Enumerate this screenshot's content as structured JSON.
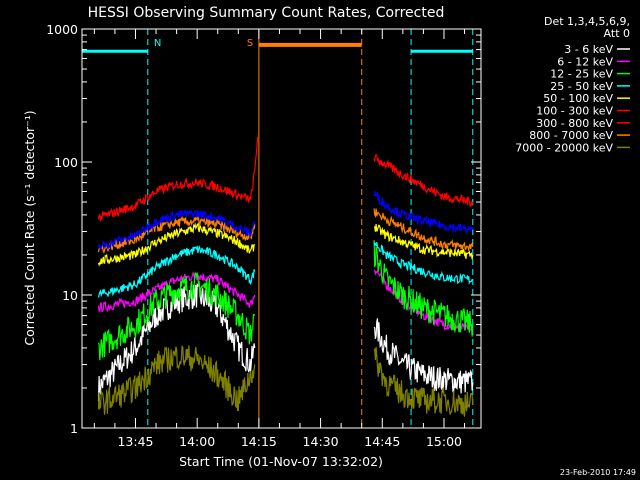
{
  "chart_data": {
    "type": "line",
    "title": "HESSI Observing Summary Count Rates, Corrected",
    "xlabel": "Start Time (01-Nov-07 13:32:02)",
    "ylabel": "Corrected Count Rate (s⁻¹ detector⁻¹)",
    "ylog": true,
    "ylim": [
      1,
      1000
    ],
    "xlim": [
      "13:32",
      "15:09"
    ],
    "x_ticks": [
      "13:45",
      "14:00",
      "14:15",
      "14:30",
      "14:45",
      "15:00"
    ],
    "y_ticks": [
      "1",
      "10",
      "100",
      "1000"
    ],
    "legend_header": [
      "Det 1,3,4,5,6,9,",
      "Att 0"
    ],
    "legend_position": "top-right",
    "date_stamp": "23-Feb-2010 17:49",
    "flags": [
      {
        "label": "N",
        "name": "night",
        "color": "#00ffff",
        "spans": [
          [
            "13:32",
            "13:48"
          ],
          [
            "14:52",
            "15:07"
          ]
        ],
        "level": 680
      },
      {
        "label": "S",
        "name": "saa",
        "color": "#ff8000",
        "spans": [
          [
            "14:15",
            "14:40"
          ]
        ],
        "level": 760
      }
    ],
    "series": [
      {
        "name": "3 - 6 keV",
        "color": "#ffffff",
        "points": [
          [
            "13:36",
            2
          ],
          [
            "13:45",
            4
          ],
          [
            "13:50",
            7
          ],
          [
            "13:55",
            9
          ],
          [
            "14:00",
            10
          ],
          [
            "14:05",
            8
          ],
          [
            "14:10",
            4
          ],
          [
            "14:13",
            3
          ],
          [
            "14:14",
            4
          ],
          [
            "14:43",
            6
          ],
          [
            "14:46",
            4
          ],
          [
            "14:50",
            3
          ],
          [
            "14:55",
            2.5
          ],
          [
            "15:00",
            2.3
          ],
          [
            "15:07",
            2.2
          ]
        ]
      },
      {
        "name": "6 - 12 keV",
        "color": "#ff00ff",
        "points": [
          [
            "13:36",
            8
          ],
          [
            "13:45",
            9
          ],
          [
            "13:50",
            11
          ],
          [
            "13:55",
            13
          ],
          [
            "14:00",
            14
          ],
          [
            "14:05",
            13
          ],
          [
            "14:10",
            10
          ],
          [
            "14:13",
            8.5
          ],
          [
            "14:14",
            10
          ],
          [
            "14:43",
            16
          ],
          [
            "14:46",
            12
          ],
          [
            "14:50",
            9
          ],
          [
            "14:55",
            7
          ],
          [
            "15:00",
            6
          ],
          [
            "15:07",
            5.5
          ]
        ]
      },
      {
        "name": "12 - 25 keV",
        "color": "#00ff00",
        "points": [
          [
            "13:36",
            4
          ],
          [
            "13:45",
            6
          ],
          [
            "13:50",
            9
          ],
          [
            "13:55",
            11
          ],
          [
            "14:00",
            12
          ],
          [
            "14:05",
            10
          ],
          [
            "14:10",
            7
          ],
          [
            "14:13",
            5
          ],
          [
            "14:14",
            7
          ],
          [
            "14:43",
            21
          ],
          [
            "14:46",
            13
          ],
          [
            "14:50",
            10
          ],
          [
            "14:55",
            8
          ],
          [
            "15:00",
            7
          ],
          [
            "15:07",
            6
          ]
        ]
      },
      {
        "name": "25 - 50 keV",
        "color": "#00ffff",
        "points": [
          [
            "13:36",
            10
          ],
          [
            "13:45",
            12
          ],
          [
            "13:50",
            16
          ],
          [
            "13:55",
            20
          ],
          [
            "14:00",
            22
          ],
          [
            "14:05",
            20
          ],
          [
            "14:10",
            16
          ],
          [
            "14:13",
            13
          ],
          [
            "14:14",
            15
          ],
          [
            "14:43",
            25
          ],
          [
            "14:46",
            20
          ],
          [
            "14:50",
            17
          ],
          [
            "14:55",
            15
          ],
          [
            "15:00",
            13.5
          ],
          [
            "15:07",
            13
          ]
        ]
      },
      {
        "name": "50 - 100 keV",
        "color": "#ffff00",
        "points": [
          [
            "13:36",
            18
          ],
          [
            "13:45",
            20
          ],
          [
            "13:50",
            25
          ],
          [
            "13:55",
            29
          ],
          [
            "14:00",
            32
          ],
          [
            "14:05",
            29
          ],
          [
            "14:10",
            25
          ],
          [
            "14:13",
            21
          ],
          [
            "14:14",
            24
          ],
          [
            "14:43",
            33
          ],
          [
            "14:46",
            28
          ],
          [
            "14:50",
            25
          ],
          [
            "14:55",
            22
          ],
          [
            "15:00",
            21
          ],
          [
            "15:07",
            20
          ]
        ]
      },
      {
        "name": "100 - 300 keV",
        "color": "#ff0000",
        "points": [
          [
            "13:36",
            38
          ],
          [
            "13:45",
            47
          ],
          [
            "13:50",
            60
          ],
          [
            "13:55",
            68
          ],
          [
            "14:00",
            70
          ],
          [
            "14:05",
            65
          ],
          [
            "14:10",
            56
          ],
          [
            "14:13",
            52
          ],
          [
            "14:14",
            85
          ],
          [
            "14:14.7",
            155
          ],
          [
            "14:43",
            108
          ],
          [
            "14:46",
            95
          ],
          [
            "14:50",
            80
          ],
          [
            "14:55",
            66
          ],
          [
            "15:00",
            55
          ],
          [
            "15:07",
            50
          ]
        ]
      },
      {
        "name": "300 - 800 keV",
        "color": "#ff0000",
        "points": []
      },
      {
        "name": "800 - 7000 keV",
        "color": "#ff8000",
        "points": [
          [
            "13:36",
            22
          ],
          [
            "13:45",
            26
          ],
          [
            "13:50",
            32
          ],
          [
            "13:55",
            35
          ],
          [
            "14:00",
            36
          ],
          [
            "14:05",
            34
          ],
          [
            "14:10",
            29
          ],
          [
            "14:13",
            27
          ],
          [
            "14:14",
            34
          ],
          [
            "14:43",
            43
          ],
          [
            "14:46",
            37
          ],
          [
            "14:50",
            32
          ],
          [
            "14:55",
            27
          ],
          [
            "15:00",
            24
          ],
          [
            "15:07",
            23
          ]
        ]
      },
      {
        "name": "7000 - 20000 keV",
        "color": "#808000",
        "points": [
          [
            "13:36",
            1.5
          ],
          [
            "13:45",
            2
          ],
          [
            "13:50",
            3
          ],
          [
            "13:55",
            3.5
          ],
          [
            "14:00",
            3.3
          ],
          [
            "14:05",
            2.5
          ],
          [
            "14:10",
            1.6
          ],
          [
            "14:13",
            2.5
          ],
          [
            "14:14",
            3
          ],
          [
            "14:43",
            3.5
          ],
          [
            "14:46",
            2.2
          ],
          [
            "14:50",
            1.8
          ],
          [
            "14:55",
            1.6
          ],
          [
            "15:00",
            1.6
          ],
          [
            "15:07",
            1.5
          ]
        ]
      },
      {
        "name": "6 - 12 keV (blue)",
        "color": "#0000ff",
        "legend": false,
        "points": [
          [
            "13:36",
            23
          ],
          [
            "13:45",
            28
          ],
          [
            "13:50",
            36
          ],
          [
            "13:55",
            40
          ],
          [
            "14:00",
            41
          ],
          [
            "14:05",
            38
          ],
          [
            "14:10",
            32
          ],
          [
            "14:13",
            29
          ],
          [
            "14:14",
            36
          ],
          [
            "14:43",
            58
          ],
          [
            "14:46",
            47
          ],
          [
            "14:50",
            40
          ],
          [
            "14:55",
            36
          ],
          [
            "15:00",
            33
          ],
          [
            "15:07",
            31
          ]
        ]
      }
    ]
  }
}
